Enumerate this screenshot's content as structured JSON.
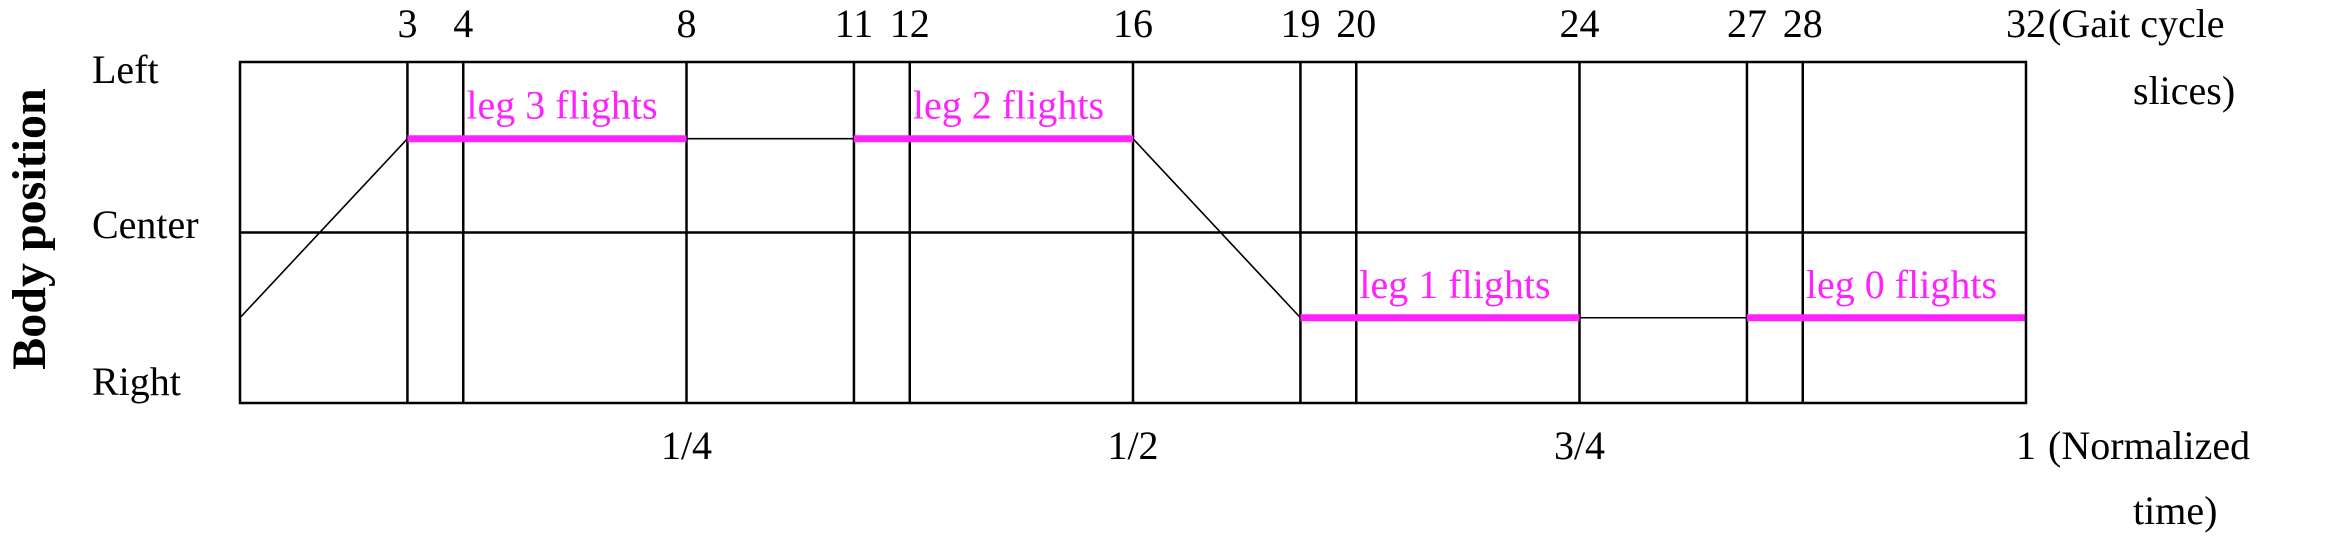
{
  "y_axis_title": "Body position",
  "positions": {
    "left": "Left",
    "center": "Center",
    "right": "Right"
  },
  "slices": {
    "total": 32,
    "marks": [
      3,
      4,
      8,
      11,
      12,
      16,
      19,
      20,
      24,
      27,
      28,
      32
    ],
    "unit_line1": "(Gait cycle",
    "unit_line2": "slices)"
  },
  "normalized_time": {
    "ticks": [
      {
        "value": 0.25,
        "label": "1/4"
      },
      {
        "value": 0.5,
        "label": "1/2"
      },
      {
        "value": 0.75,
        "label": "3/4"
      },
      {
        "value": 1.0,
        "label": "1"
      }
    ],
    "unit_line1": "(Normalized",
    "unit_line2": "time)"
  },
  "body_path": [
    {
      "slice": 0,
      "position": -0.5
    },
    {
      "slice": 3,
      "position": 0.55
    },
    {
      "slice": 16,
      "position": 0.55
    },
    {
      "slice": 19,
      "position": -0.5
    },
    {
      "slice": 32,
      "position": -0.5
    }
  ],
  "flights": [
    {
      "label": "leg 3 flights",
      "start": 3,
      "end": 8,
      "position": 0.55
    },
    {
      "label": "leg 2 flights",
      "start": 11,
      "end": 16,
      "position": 0.55
    },
    {
      "label": "leg 1 flights",
      "start": 19,
      "end": 24,
      "position": -0.5
    },
    {
      "label": "leg 0 flights",
      "start": 27,
      "end": 32,
      "position": -0.5
    }
  ],
  "colors": {
    "frame": "#000000",
    "flight": "#ff22ff",
    "path": "#000000"
  }
}
